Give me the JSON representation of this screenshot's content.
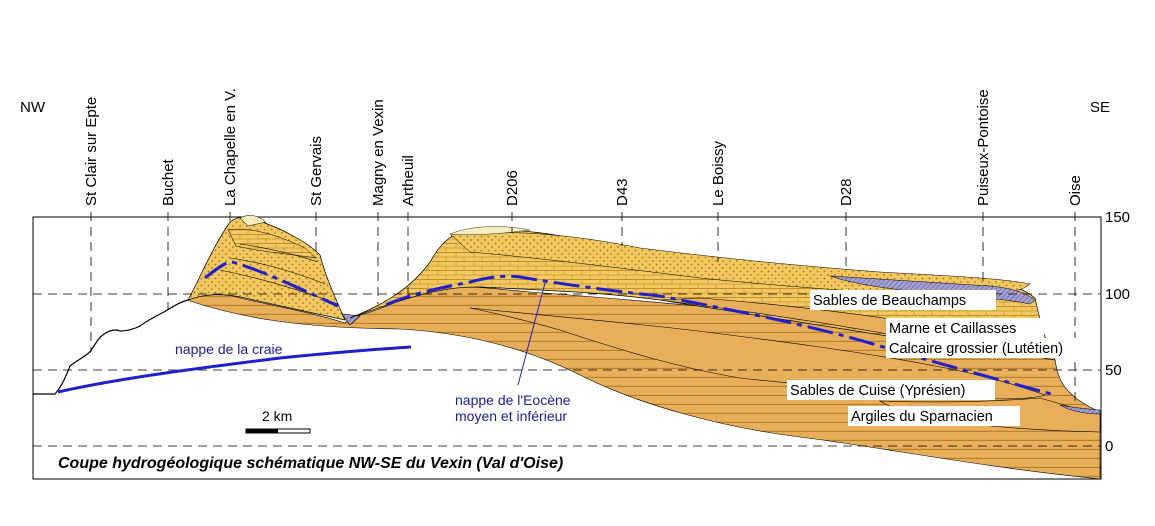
{
  "orientation": {
    "left": "NW",
    "right": "SE"
  },
  "localities": [
    "St Clair sur Epte",
    "Buchet",
    "La Chapelle en V.",
    "St Gervais",
    "Magny en Vexin",
    "Artheuil",
    "D206",
    "D43",
    "Le Boissy",
    "D28",
    "Puiseux-Pontoise",
    "Oise"
  ],
  "elevation_ticks": [
    "150",
    "100",
    "50",
    "0"
  ],
  "layers": [
    "Sables de Beauchamps",
    "Marne et Caillasses",
    "Calcaire grossier (Lutétien)",
    "Sables de Cuise (Yprésien)",
    "Argiles du Sparnacien"
  ],
  "aquifers": [
    "nappe de la craie",
    "nappe de l'Eocène",
    "moyen et inférieur"
  ],
  "scale_label": "2 km",
  "title": "Coupe hydrogéologique schématique NW-SE du Vexin (Val d'Oise)",
  "colors": {
    "sand": "#e8ae5a",
    "limestone": "#f2c860",
    "hatch": "#a9741c",
    "beauchamps": "#9a96c8",
    "water_table": "#2020d0",
    "cream": "#f5eec0"
  }
}
